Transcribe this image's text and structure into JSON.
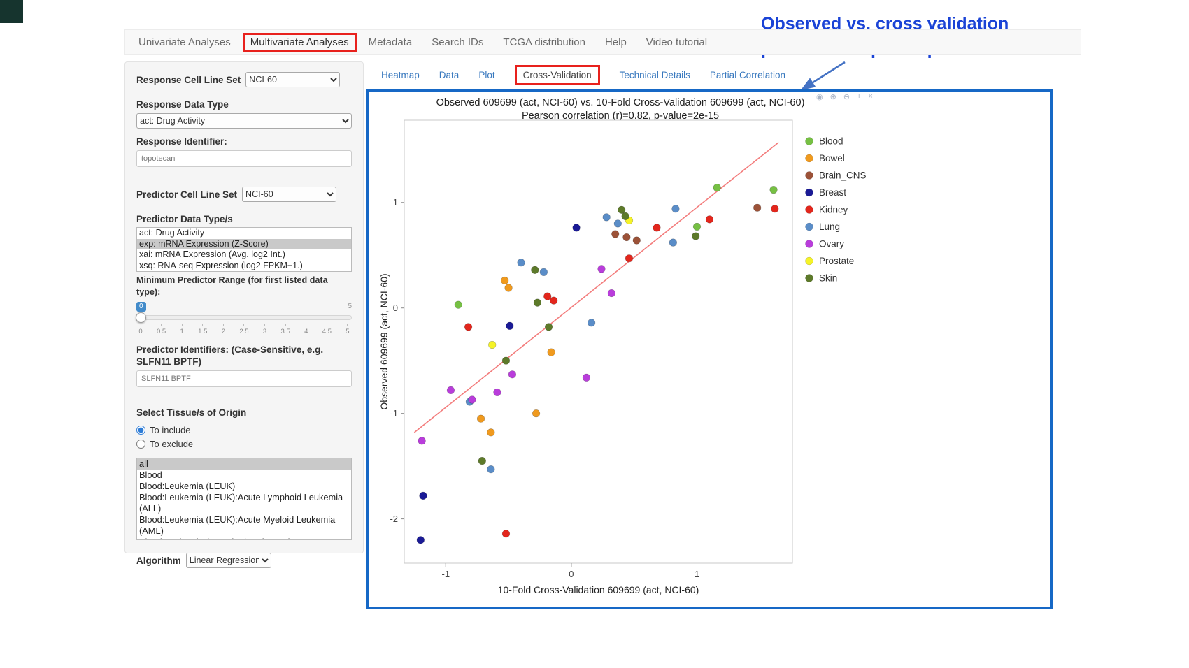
{
  "colors": {
    "accent_red": "#e8211d",
    "plot_border": "#1668c6",
    "annotation_text": "#1a43d6",
    "arrow": "#4472c4",
    "link": "#3878be"
  },
  "annotation": {
    "line1": "Observed vs. cross validation",
    "line2": "predicted response plot"
  },
  "nav": {
    "items": [
      {
        "label": "Univariate Analyses"
      },
      {
        "label": "Multivariate Analyses",
        "active": true,
        "highlighted": true
      },
      {
        "label": "Metadata"
      },
      {
        "label": "Search IDs"
      },
      {
        "label": "TCGA distribution"
      },
      {
        "label": "Help"
      },
      {
        "label": "Video tutorial"
      }
    ]
  },
  "sidebar": {
    "response_cell_line_set": {
      "label": "Response Cell Line Set",
      "value": "NCI-60"
    },
    "response_data_type": {
      "label": "Response Data Type",
      "value": "act: Drug Activity"
    },
    "response_identifier": {
      "label": "Response Identifier:",
      "value": "topotecan"
    },
    "predictor_cell_line_set": {
      "label": "Predictor Cell Line Set",
      "value": "NCI-60"
    },
    "predictor_data_types": {
      "label": "Predictor Data Type/s",
      "options": [
        "act: Drug Activity",
        "exp: mRNA Expression (Z-Score)",
        "xai: mRNA Expression (Avg. log2 Int.)",
        "xsq: RNA-seq Expression (log2 FPKM+1.)"
      ],
      "selected": "exp: mRNA Expression (Z-Score)"
    },
    "min_predictor_range": {
      "label": "Minimum Predictor Range (for first listed data type):",
      "value": "0",
      "max": "5",
      "ticks": [
        "0",
        "0.5",
        "1",
        "1.5",
        "2",
        "2.5",
        "3",
        "3.5",
        "4",
        "4.5",
        "5"
      ]
    },
    "predictor_identifiers": {
      "label": "Predictor Identifiers: (Case-Sensitive, e.g. SLFN11 BPTF)",
      "value": "SLFN11 BPTF"
    },
    "tissue_origin": {
      "label": "Select Tissue/s of Origin",
      "radios": [
        {
          "label": "To include",
          "checked": true
        },
        {
          "label": "To exclude",
          "checked": false
        }
      ],
      "options": [
        "all",
        "Blood",
        "Blood:Leukemia (LEUK)",
        "Blood:Leukemia (LEUK):Acute Lymphoid Leukemia (ALL)",
        "Blood:Leukemia (LEUK):Acute Myeloid Leukemia (AML)",
        "Blood:Leukemia (LEUK):Chronic Myelogenous Leukemia (CML)"
      ],
      "selected": "all"
    },
    "algorithm": {
      "label": "Algorithm",
      "value": "Linear Regression"
    }
  },
  "subtabs": {
    "items": [
      {
        "label": "Heatmap"
      },
      {
        "label": "Data"
      },
      {
        "label": "Plot"
      },
      {
        "label": "Cross-Validation",
        "active": true,
        "highlighted": true
      },
      {
        "label": "Technical Details"
      },
      {
        "label": "Partial Correlation"
      }
    ]
  },
  "plot": {
    "modebar": [
      {
        "name": "camera-icon",
        "glyph": "◉"
      },
      {
        "name": "zoom-icon",
        "glyph": "⊕"
      },
      {
        "name": "zoom-out-icon",
        "glyph": "⊖"
      },
      {
        "name": "pan-icon",
        "glyph": "+"
      },
      {
        "name": "close-icon",
        "glyph": "×"
      }
    ]
  },
  "chart_data": {
    "type": "scatter",
    "title": "Observed 609699 (act, NCI-60) vs. 10-Fold Cross-Validation 609699 (act, NCI-60)",
    "subtitle": "Pearson correlation (r)=0.82, p-value=2e-15",
    "xlabel": "10-Fold Cross-Validation 609699 (act, NCI-60)",
    "ylabel": "Observed 609699 (act, NCI-60)",
    "xlim": [
      -1.33,
      1.76
    ],
    "ylim": [
      -2.42,
      1.78
    ],
    "xticks": [
      -1,
      0,
      1
    ],
    "yticks": [
      -2,
      -1,
      0,
      1
    ],
    "grid": false,
    "legend_position": "right",
    "regression_line": {
      "x1": -1.25,
      "y1": -1.18,
      "x2": 1.65,
      "y2": 1.57,
      "color": "#f37c7c"
    },
    "series": [
      {
        "name": "Blood",
        "color": "#76c043",
        "points": [
          [
            -0.9,
            0.03
          ],
          [
            1.0,
            0.77
          ],
          [
            1.16,
            1.14
          ],
          [
            1.61,
            1.12
          ]
        ]
      },
      {
        "name": "Bowel",
        "color": "#f09a1e",
        "points": [
          [
            -0.53,
            0.26
          ],
          [
            -0.5,
            0.19
          ],
          [
            -0.16,
            -0.42
          ],
          [
            -0.28,
            -1.0
          ],
          [
            -0.72,
            -1.05
          ],
          [
            -0.64,
            -1.18
          ]
        ]
      },
      {
        "name": "Brain_CNS",
        "color": "#9c5238",
        "points": [
          [
            0.35,
            0.7
          ],
          [
            0.44,
            0.67
          ],
          [
            0.52,
            0.64
          ],
          [
            1.48,
            0.95
          ]
        ]
      },
      {
        "name": "Breast",
        "color": "#1a1a96",
        "points": [
          [
            0.04,
            0.76
          ],
          [
            -0.49,
            -0.17
          ],
          [
            -1.18,
            -1.78
          ],
          [
            -1.2,
            -2.2
          ]
        ]
      },
      {
        "name": "Kidney",
        "color": "#e3261c",
        "points": [
          [
            -0.82,
            -0.18
          ],
          [
            -0.19,
            0.11
          ],
          [
            -0.14,
            0.07
          ],
          [
            0.46,
            0.47
          ],
          [
            0.68,
            0.76
          ],
          [
            1.1,
            0.84
          ],
          [
            1.62,
            0.94
          ],
          [
            -0.52,
            -2.14
          ]
        ]
      },
      {
        "name": "Lung",
        "color": "#5a8dc8",
        "points": [
          [
            -0.4,
            0.43
          ],
          [
            -0.22,
            0.34
          ],
          [
            0.16,
            -0.14
          ],
          [
            0.28,
            0.86
          ],
          [
            0.37,
            0.8
          ],
          [
            0.83,
            0.94
          ],
          [
            0.81,
            0.62
          ],
          [
            -0.81,
            -0.89
          ],
          [
            -0.64,
            -1.53
          ]
        ]
      },
      {
        "name": "Ovary",
        "color": "#b93ddb",
        "points": [
          [
            -1.19,
            -1.26
          ],
          [
            -0.96,
            -0.78
          ],
          [
            -0.79,
            -0.87
          ],
          [
            -0.59,
            -0.8
          ],
          [
            -0.47,
            -0.63
          ],
          [
            0.12,
            -0.66
          ],
          [
            0.24,
            0.37
          ],
          [
            0.32,
            0.14
          ]
        ]
      },
      {
        "name": "Prostate",
        "color": "#f5f327",
        "points": [
          [
            -0.63,
            -0.35
          ],
          [
            0.46,
            0.83
          ]
        ]
      },
      {
        "name": "Skin",
        "color": "#5d7a2a",
        "points": [
          [
            0.4,
            0.93
          ],
          [
            0.43,
            0.87
          ],
          [
            -0.52,
            -0.5
          ],
          [
            -0.29,
            0.36
          ],
          [
            -0.27,
            0.05
          ],
          [
            -0.18,
            -0.18
          ],
          [
            -0.71,
            -1.45
          ],
          [
            0.99,
            0.68
          ]
        ]
      }
    ]
  }
}
